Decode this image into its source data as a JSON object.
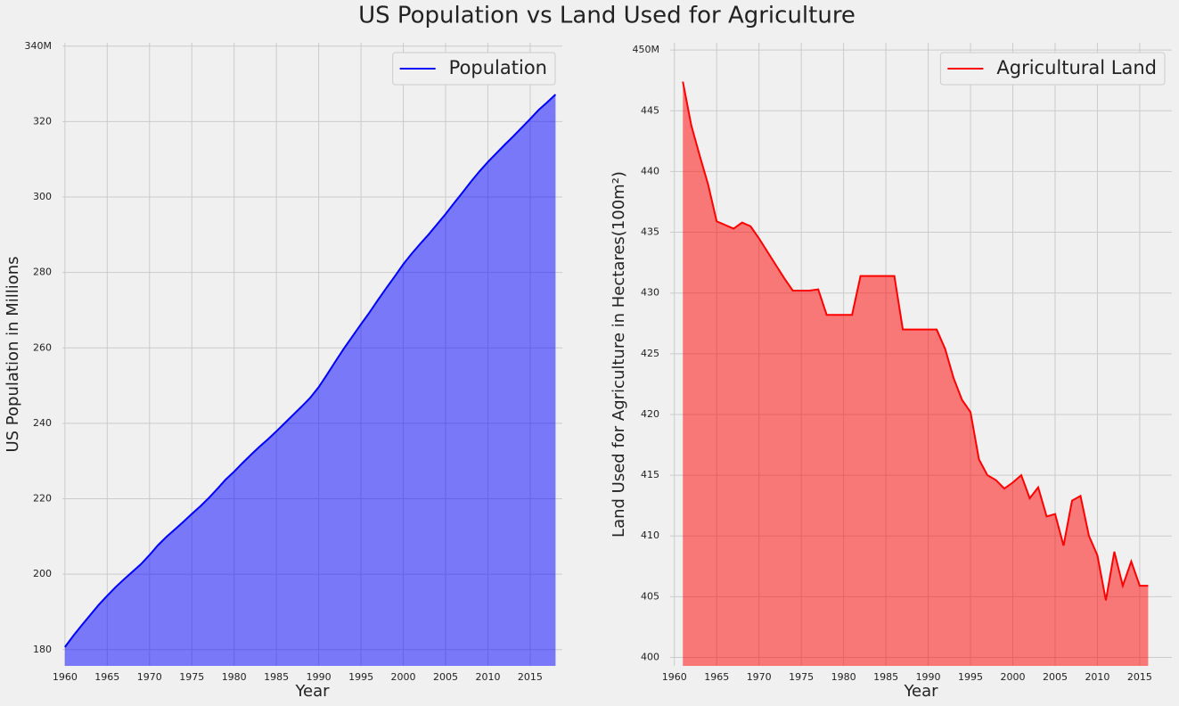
{
  "title": "US Population vs Land Used for Agriculture",
  "chart_data": [
    {
      "type": "area",
      "xlabel": "Year",
      "ylabel": "US Population in Millions",
      "x": [
        1960,
        1961,
        1962,
        1963,
        1964,
        1965,
        1966,
        1967,
        1968,
        1969,
        1970,
        1971,
        1972,
        1973,
        1974,
        1975,
        1976,
        1977,
        1978,
        1979,
        1980,
        1981,
        1982,
        1983,
        1984,
        1985,
        1986,
        1987,
        1988,
        1989,
        1990,
        1991,
        1992,
        1993,
        1994,
        1995,
        1996,
        1997,
        1998,
        1999,
        2000,
        2001,
        2002,
        2003,
        2004,
        2005,
        2006,
        2007,
        2008,
        2009,
        2010,
        2011,
        2012,
        2013,
        2014,
        2015,
        2016,
        2017,
        2018
      ],
      "series": [
        {
          "name": "Population",
          "color": "#0000ff",
          "values": [
            180.7,
            183.7,
            186.5,
            189.2,
            191.9,
            194.3,
            196.6,
            198.7,
            200.7,
            202.7,
            205.1,
            207.7,
            209.9,
            211.9,
            213.9,
            216.0,
            218.0,
            220.2,
            222.6,
            225.1,
            227.2,
            229.5,
            231.7,
            233.8,
            235.8,
            237.9,
            240.1,
            242.3,
            244.5,
            246.8,
            249.6,
            253.0,
            256.5,
            259.9,
            263.1,
            266.3,
            269.4,
            272.7,
            275.9,
            279.0,
            282.2,
            285.0,
            287.6,
            290.1,
            292.8,
            295.5,
            298.4,
            301.2,
            304.1,
            306.8,
            309.3,
            311.6,
            313.9,
            316.1,
            318.4,
            320.7,
            323.1,
            325.1,
            327.2
          ]
        }
      ],
      "xlim": [
        1959.7,
        2018.8
      ],
      "ylim": [
        175.7,
        340.9
      ],
      "xticks": [
        1960,
        1965,
        1970,
        1975,
        1980,
        1985,
        1990,
        1995,
        2000,
        2005,
        2010,
        2015
      ],
      "yticks": [
        180,
        200,
        220,
        240,
        260,
        280,
        300,
        320,
        {
          "value": 340,
          "label": "340M"
        }
      ],
      "grid": true,
      "legend": "upper right"
    },
    {
      "type": "area",
      "xlabel": "Year",
      "ylabel": "Land Used for Agriculture in Hectares(100m²)",
      "x": [
        1961,
        1962,
        1963,
        1964,
        1965,
        1966,
        1967,
        1968,
        1969,
        1970,
        1971,
        1972,
        1973,
        1974,
        1975,
        1976,
        1977,
        1978,
        1979,
        1980,
        1981,
        1982,
        1983,
        1984,
        1985,
        1986,
        1987,
        1988,
        1989,
        1990,
        1991,
        1992,
        1993,
        1994,
        1995,
        1996,
        1997,
        1998,
        1999,
        2000,
        2001,
        2002,
        2003,
        2004,
        2005,
        2006,
        2007,
        2008,
        2009,
        2010,
        2011,
        2012,
        2013,
        2014,
        2015,
        2016
      ],
      "series": [
        {
          "name": "Agricultural Land",
          "color": "#ff0000",
          "values": [
            447.4,
            443.8,
            441.3,
            438.9,
            435.9,
            435.6,
            435.3,
            435.8,
            435.5,
            434.5,
            433.4,
            432.3,
            431.2,
            430.2,
            430.2,
            430.2,
            430.3,
            428.2,
            428.2,
            428.2,
            428.2,
            431.4,
            431.4,
            431.4,
            431.4,
            431.4,
            427.0,
            427.0,
            427.0,
            427.0,
            427.0,
            425.4,
            423.0,
            421.2,
            420.2,
            416.3,
            415.0,
            414.6,
            413.9,
            414.4,
            415.0,
            413.1,
            414.0,
            411.6,
            411.8,
            409.2,
            412.9,
            413.3,
            410.0,
            408.4,
            404.7,
            408.7,
            405.9,
            407.9,
            405.9,
            405.9
          ]
        }
      ],
      "xlim": [
        1959.5,
        2018.8
      ],
      "ylim": [
        399.3,
        450.6
      ],
      "xticks": [
        1960,
        1965,
        1970,
        1975,
        1980,
        1985,
        1990,
        1995,
        2000,
        2005,
        2010,
        2015
      ],
      "yticks": [
        400,
        405,
        410,
        415,
        420,
        425,
        430,
        435,
        440,
        445,
        {
          "value": 450,
          "label": "450M"
        }
      ],
      "grid": true,
      "legend": "upper right"
    }
  ]
}
